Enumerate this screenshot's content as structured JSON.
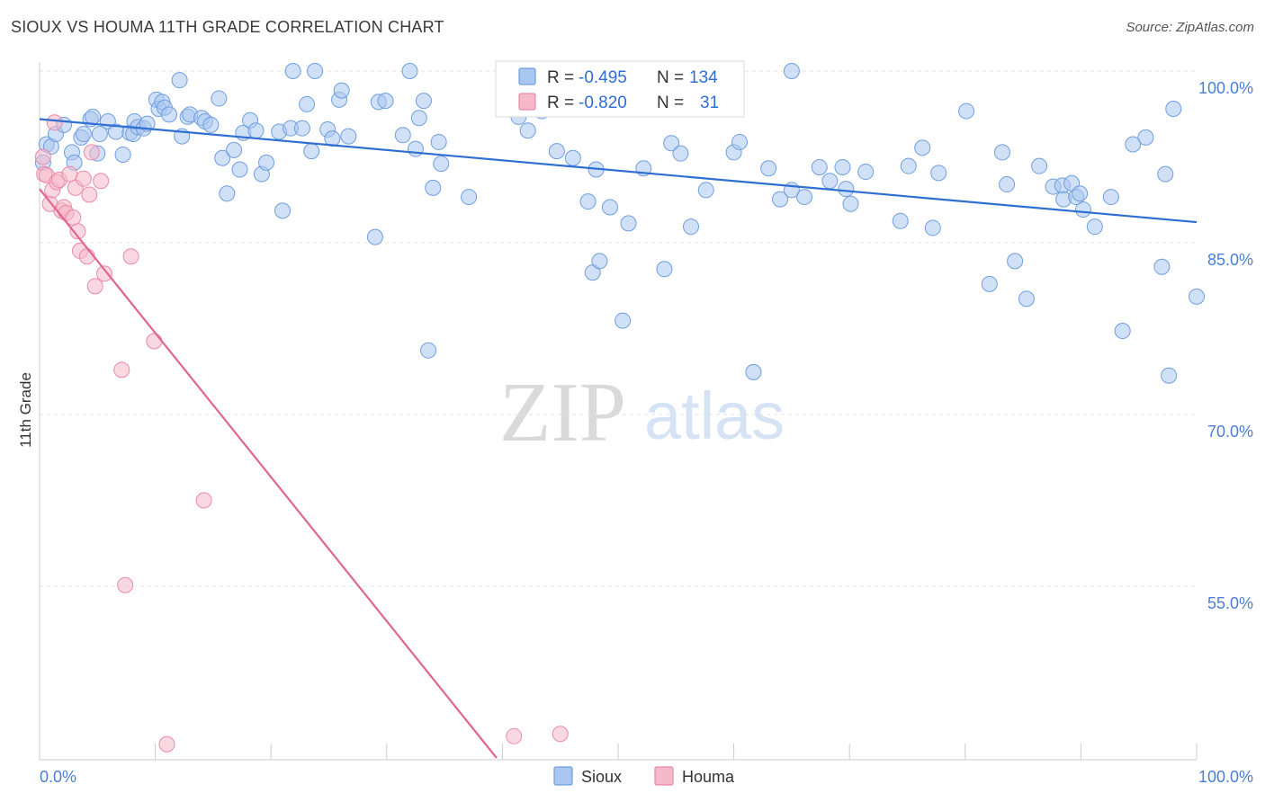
{
  "title": "SIOUX VS HOUMA 11TH GRADE CORRELATION CHART",
  "source": "Source: ZipAtlas.com",
  "watermark": {
    "zip": "ZIP",
    "atlas": "atlas"
  },
  "colors": {
    "sioux_fill": "#a9c7f0",
    "sioux_stroke": "#6f9fdf",
    "sioux_line": "#2f6fd1",
    "houma_fill": "#f6b8cb",
    "houma_stroke": "#ea8aa8",
    "houma_line": "#e06690",
    "tick_text": "#4a7fd4",
    "grid": "#e3e3e3"
  },
  "legend": {
    "rows": [
      {
        "r_label": "R = ",
        "r_value": "-0.495",
        "n_label": "N = ",
        "n_value": "134"
      },
      {
        "r_label": "R = ",
        "r_value": "-0.820",
        "n_label": "N = ",
        "n_value": "31"
      }
    ]
  },
  "chart_data": {
    "type": "scatter",
    "title": "SIOUX VS HOUMA 11TH GRADE CORRELATION CHART",
    "xlabel": "",
    "ylabel": "11th Grade",
    "xlim": [
      0,
      100
    ],
    "ylim": [
      40,
      101
    ],
    "x_tick_labels": [
      "0.0%",
      "100.0%"
    ],
    "y_ticks": [
      100,
      85,
      70,
      55
    ],
    "y_tick_labels": [
      "100.0%",
      "85.0%",
      "70.0%",
      "55.0%"
    ],
    "grid": true,
    "legend_position": "bottom-center",
    "series": [
      {
        "name": "Sioux",
        "trend": [
          [
            0,
            95.8
          ],
          [
            100,
            86.8
          ]
        ],
        "points": [
          [
            0.6,
            93.6
          ],
          [
            1.0,
            93.4
          ],
          [
            1.4,
            94.5
          ],
          [
            2.1,
            95.3
          ],
          [
            2.8,
            92.9
          ],
          [
            3.6,
            94.2
          ],
          [
            3.8,
            94.5
          ],
          [
            4.4,
            95.8
          ],
          [
            4.6,
            96.0
          ],
          [
            5.0,
            92.8
          ],
          [
            5.9,
            95.6
          ],
          [
            6.6,
            94.7
          ],
          [
            7.2,
            92.7
          ],
          [
            7.8,
            94.6
          ],
          [
            8.1,
            94.5
          ],
          [
            8.2,
            95.6
          ],
          [
            8.5,
            95.1
          ],
          [
            9.0,
            95.0
          ],
          [
            9.3,
            95.4
          ],
          [
            10.1,
            97.5
          ],
          [
            10.3,
            96.7
          ],
          [
            10.6,
            97.3
          ],
          [
            10.8,
            96.8
          ],
          [
            11.2,
            96.2
          ],
          [
            12.1,
            99.2
          ],
          [
            12.3,
            94.3
          ],
          [
            12.8,
            96.0
          ],
          [
            13.0,
            96.2
          ],
          [
            14.0,
            95.9
          ],
          [
            14.3,
            95.6
          ],
          [
            14.8,
            95.3
          ],
          [
            15.5,
            97.6
          ],
          [
            15.8,
            92.4
          ],
          [
            16.2,
            89.3
          ],
          [
            16.8,
            93.1
          ],
          [
            17.3,
            91.4
          ],
          [
            17.6,
            94.6
          ],
          [
            18.2,
            95.7
          ],
          [
            18.7,
            94.8
          ],
          [
            19.2,
            91.0
          ],
          [
            19.6,
            92.0
          ],
          [
            20.7,
            94.7
          ],
          [
            21.0,
            87.8
          ],
          [
            21.7,
            95.0
          ],
          [
            21.9,
            100.0
          ],
          [
            22.7,
            95.0
          ],
          [
            23.1,
            97.1
          ],
          [
            23.5,
            93.0
          ],
          [
            23.8,
            100.0
          ],
          [
            24.9,
            94.9
          ],
          [
            25.3,
            94.1
          ],
          [
            25.9,
            97.5
          ],
          [
            26.1,
            98.3
          ],
          [
            26.7,
            94.3
          ],
          [
            29.0,
            85.5
          ],
          [
            29.3,
            97.3
          ],
          [
            29.9,
            97.4
          ],
          [
            31.4,
            94.4
          ],
          [
            32.0,
            100.0
          ],
          [
            32.5,
            93.2
          ],
          [
            32.8,
            95.9
          ],
          [
            33.2,
            97.4
          ],
          [
            33.6,
            75.6
          ],
          [
            34.0,
            89.8
          ],
          [
            34.5,
            93.8
          ],
          [
            34.7,
            91.9
          ],
          [
            37.1,
            89.0
          ],
          [
            41.4,
            96.0
          ],
          [
            42.2,
            94.8
          ],
          [
            43.4,
            96.5
          ],
          [
            44.3,
            100.0
          ],
          [
            44.7,
            93.0
          ],
          [
            46.1,
            92.4
          ],
          [
            47.4,
            88.6
          ],
          [
            47.8,
            82.4
          ],
          [
            48.1,
            91.4
          ],
          [
            48.4,
            83.4
          ],
          [
            49.3,
            88.1
          ],
          [
            50.4,
            78.2
          ],
          [
            50.9,
            86.7
          ],
          [
            52.2,
            91.5
          ],
          [
            54.0,
            82.7
          ],
          [
            54.6,
            93.7
          ],
          [
            55.4,
            92.8
          ],
          [
            55.8,
            98.0
          ],
          [
            56.3,
            86.4
          ],
          [
            57.6,
            89.6
          ],
          [
            60.0,
            92.9
          ],
          [
            60.1,
            100.0
          ],
          [
            60.5,
            93.8
          ],
          [
            61.7,
            73.7
          ],
          [
            63.0,
            91.5
          ],
          [
            64.0,
            88.8
          ],
          [
            65.0,
            89.6
          ],
          [
            65.0,
            100.0
          ],
          [
            66.1,
            89.0
          ],
          [
            67.4,
            91.6
          ],
          [
            68.3,
            90.4
          ],
          [
            69.4,
            91.6
          ],
          [
            69.7,
            89.7
          ],
          [
            70.1,
            88.4
          ],
          [
            71.4,
            91.2
          ],
          [
            74.4,
            86.9
          ],
          [
            75.1,
            91.7
          ],
          [
            76.3,
            93.3
          ],
          [
            77.2,
            86.3
          ],
          [
            77.7,
            91.1
          ],
          [
            80.1,
            96.5
          ],
          [
            82.1,
            81.4
          ],
          [
            83.2,
            92.9
          ],
          [
            83.6,
            90.1
          ],
          [
            84.3,
            83.4
          ],
          [
            85.3,
            80.1
          ],
          [
            86.4,
            91.7
          ],
          [
            87.6,
            89.9
          ],
          [
            88.4,
            90.0
          ],
          [
            88.5,
            88.8
          ],
          [
            89.2,
            90.2
          ],
          [
            89.6,
            89.0
          ],
          [
            89.9,
            89.3
          ],
          [
            90.2,
            87.9
          ],
          [
            91.2,
            86.4
          ],
          [
            92.6,
            89.0
          ],
          [
            93.6,
            77.3
          ],
          [
            94.5,
            93.6
          ],
          [
            95.6,
            94.2
          ],
          [
            97.0,
            82.9
          ],
          [
            97.3,
            91.0
          ],
          [
            97.6,
            73.4
          ],
          [
            98.0,
            96.7
          ],
          [
            100.0,
            80.3
          ],
          [
            0.3,
            92.0
          ],
          [
            3.0,
            92.0
          ],
          [
            5.2,
            94.5
          ]
        ]
      },
      {
        "name": "Houma",
        "trend": [
          [
            0,
            89.7
          ],
          [
            39.5,
            40
          ]
        ],
        "points": [
          [
            0.3,
            92.5
          ],
          [
            0.4,
            91.0
          ],
          [
            0.6,
            90.9
          ],
          [
            0.9,
            88.4
          ],
          [
            1.1,
            89.6
          ],
          [
            1.3,
            95.5
          ],
          [
            1.5,
            90.3
          ],
          [
            1.7,
            90.5
          ],
          [
            1.9,
            87.8
          ],
          [
            2.1,
            88.1
          ],
          [
            2.3,
            87.6
          ],
          [
            2.6,
            91.0
          ],
          [
            2.9,
            87.2
          ],
          [
            3.1,
            89.8
          ],
          [
            3.3,
            86.0
          ],
          [
            3.5,
            84.3
          ],
          [
            3.8,
            90.6
          ],
          [
            4.1,
            83.8
          ],
          [
            4.3,
            89.2
          ],
          [
            4.5,
            92.9
          ],
          [
            4.8,
            81.2
          ],
          [
            5.3,
            90.4
          ],
          [
            5.6,
            82.3
          ],
          [
            7.1,
            73.9
          ],
          [
            7.4,
            55.1
          ],
          [
            7.9,
            83.8
          ],
          [
            9.9,
            76.4
          ],
          [
            11.0,
            41.2
          ],
          [
            14.2,
            62.5
          ],
          [
            41.0,
            41.9
          ],
          [
            45.0,
            42.1
          ]
        ]
      }
    ]
  },
  "bottom_legend": [
    {
      "label": "Sioux"
    },
    {
      "label": "Houma"
    }
  ]
}
